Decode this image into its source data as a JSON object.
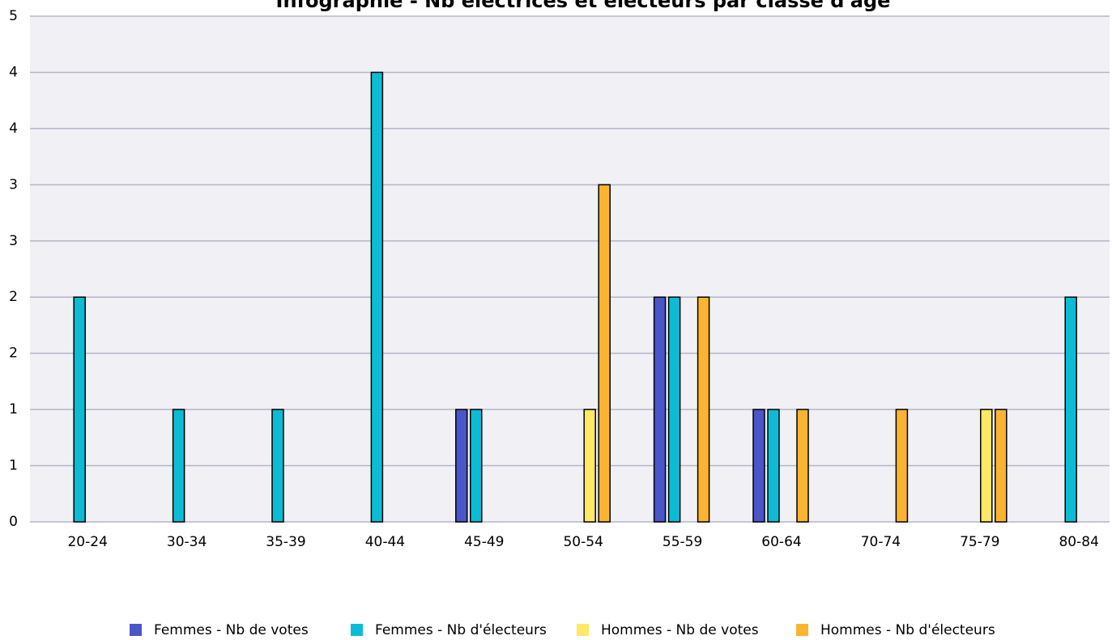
{
  "chart_data": {
    "type": "bar",
    "title": "Infographie - Nb électrices et électeurs par classe d'âge",
    "categories": [
      "20-24",
      "30-34",
      "35-39",
      "40-44",
      "45-49",
      "50-54",
      "55-59",
      "60-64",
      "70-74",
      "75-79",
      "80-84"
    ],
    "series": [
      {
        "name": "Femmes - Nb de votes",
        "color": "#4a55c8",
        "values": [
          0,
          0,
          0,
          0,
          1,
          0,
          2,
          1,
          0,
          0,
          0
        ]
      },
      {
        "name": "Femmes - Nb d'électeurs",
        "color": "#0bbcd4",
        "values": [
          2,
          1,
          1,
          4,
          1,
          0,
          2,
          1,
          0,
          0,
          2
        ]
      },
      {
        "name": "Hommes - Nb de votes",
        "color": "#ffe866",
        "values": [
          0,
          0,
          0,
          0,
          0,
          1,
          0,
          0,
          0,
          1,
          0
        ]
      },
      {
        "name": "Hommes - Nb d'électeurs",
        "color": "#fbb430",
        "values": [
          0,
          0,
          0,
          0,
          0,
          3,
          2,
          1,
          1,
          1,
          0
        ]
      }
    ],
    "ylim": [
      0,
      4.5
    ],
    "yticks": [
      0,
      {
        "value": 0.5,
        "label": "1"
      },
      1,
      {
        "value": 1.5,
        "label": "2"
      },
      2,
      {
        "value": 2.5,
        "label": "3"
      },
      3,
      {
        "value": 3.5,
        "label": "4"
      },
      4,
      {
        "value": 4.5,
        "label": "5"
      }
    ],
    "grid": true,
    "legend": "bottom"
  }
}
